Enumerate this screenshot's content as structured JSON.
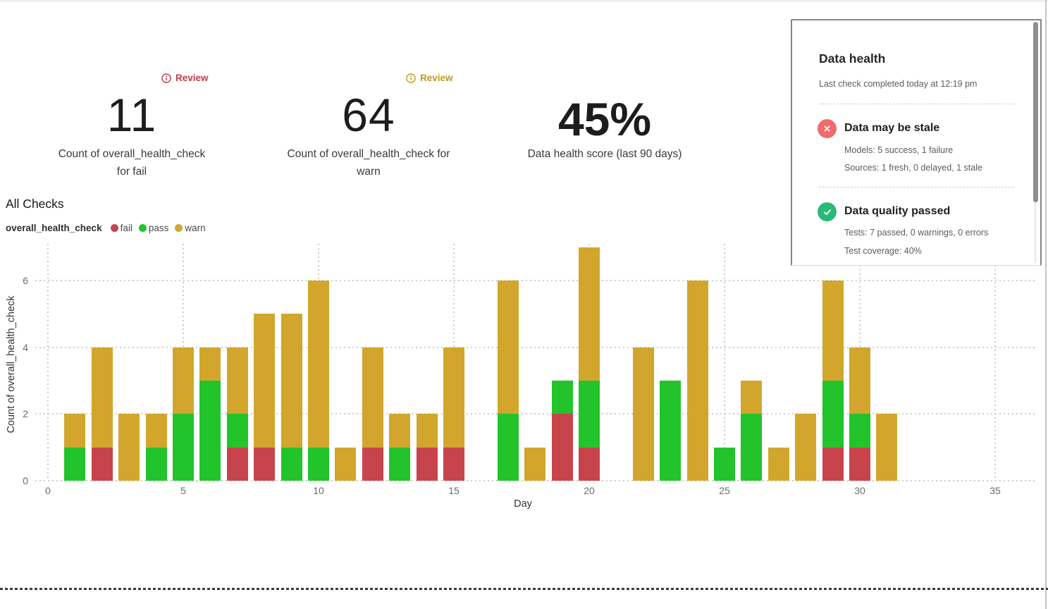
{
  "metrics": [
    {
      "value": "11",
      "label_lines": [
        "Count of overall_health_check",
        "for fail"
      ],
      "review_label": "Review",
      "review_color": "#C23B4B"
    },
    {
      "value": "64",
      "label_lines": [
        "Count of overall_health_check for",
        "warn"
      ],
      "review_label": "Review",
      "review_color": "#C2991F"
    },
    {
      "value": "45%",
      "label_lines": [
        "Data health score (last 90 days)"
      ]
    }
  ],
  "chart": {
    "title": "All Checks",
    "series_label": "overall_health_check",
    "legend": [
      {
        "label": "fail",
        "color": "#C8444D"
      },
      {
        "label": "pass",
        "color": "#22C32B"
      },
      {
        "label": "warn",
        "color": "#D2A62D"
      }
    ],
    "xlabel": "Day",
    "ylabel": "Count of overall_health_check"
  },
  "chart_data": {
    "type": "bar",
    "stacked": true,
    "title": "All Checks",
    "xlabel": "Day",
    "ylabel": "Count of overall_health_check",
    "x": [
      1,
      2,
      3,
      4,
      5,
      6,
      7,
      8,
      9,
      10,
      11,
      12,
      13,
      14,
      15,
      16,
      17,
      18,
      19,
      20,
      21,
      22,
      23,
      24,
      25,
      26,
      27,
      28,
      29,
      30,
      31
    ],
    "series": [
      {
        "name": "fail",
        "color": "#C8444D",
        "values": [
          0,
          1,
          0,
          0,
          0,
          0,
          1,
          1,
          0,
          0,
          0,
          1,
          0,
          1,
          1,
          0,
          0,
          0,
          2,
          1,
          0,
          0,
          0,
          0,
          0,
          0,
          0,
          0,
          1,
          1,
          0
        ]
      },
      {
        "name": "pass",
        "color": "#22C32B",
        "values": [
          1,
          0,
          0,
          1,
          2,
          3,
          1,
          0,
          1,
          1,
          0,
          0,
          1,
          0,
          0,
          0,
          2,
          0,
          1,
          2,
          0,
          0,
          3,
          0,
          1,
          2,
          0,
          0,
          2,
          1,
          0
        ]
      },
      {
        "name": "warn",
        "color": "#D2A62D",
        "values": [
          1,
          3,
          2,
          1,
          2,
          1,
          2,
          4,
          4,
          5,
          1,
          3,
          1,
          1,
          3,
          0,
          4,
          1,
          0,
          4,
          0,
          4,
          0,
          6,
          0,
          1,
          1,
          2,
          3,
          2,
          2
        ]
      }
    ],
    "x_ticks": [
      0,
      5,
      10,
      15,
      20,
      25,
      30,
      35
    ],
    "y_ticks": [
      0,
      2,
      4,
      6
    ],
    "xlim": [
      0,
      35
    ],
    "ylim": [
      0,
      7
    ],
    "grid": "dotted",
    "legend_position": "top-left"
  },
  "panel": {
    "title": "Data health",
    "subtitle": "Last check completed today at 12:19 pm",
    "sections": [
      {
        "icon": "x-circle",
        "icon_color": "#F06B6B",
        "title": "Data may be stale",
        "lines": [
          "Models: 5 success, 1 failure",
          "Sources: 1 fresh, 0 delayed, 1 stale"
        ]
      },
      {
        "icon": "check-circle",
        "icon_color": "#27BA76",
        "title": "Data quality passed",
        "lines": [
          "Tests: 7 passed, 0 warnings, 0 errors",
          "Test coverage: 40%"
        ]
      }
    ]
  }
}
